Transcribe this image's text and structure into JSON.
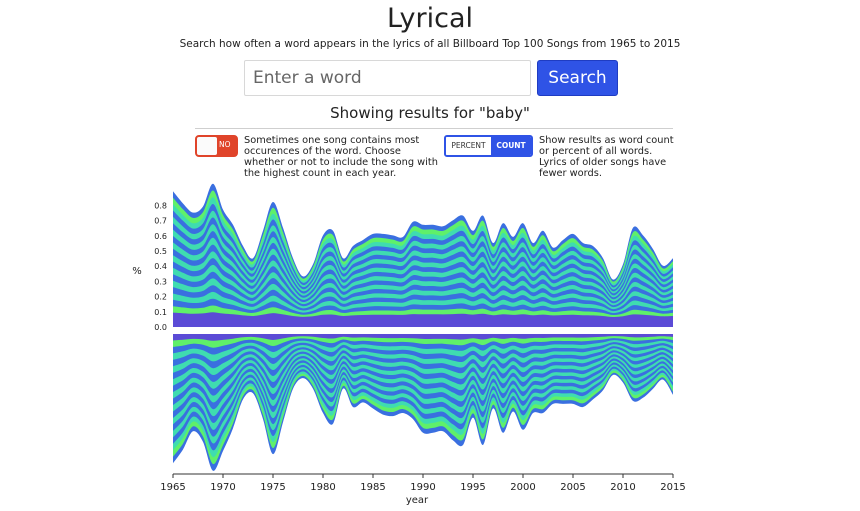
{
  "header": {
    "title": "Lyrical",
    "subtitle": "Search how often a word appears in the lyrics of all Billboard Top 100 Songs from 1965 to 2015"
  },
  "search": {
    "placeholder": "Enter a word",
    "value": "",
    "button_label": "Search"
  },
  "results": {
    "text": "Showing results for \"baby\""
  },
  "options": {
    "toggle_label": "NO",
    "toggle_help": [
      "Sometimes one song contains most",
      "occurences of the word. Choose",
      "whether or not to include the song with",
      "the highest count in each year."
    ],
    "mode_percent_label": "PERCENT",
    "mode_count_label": "COUNT",
    "selected_mode": "COUNT",
    "mode_help": [
      "Show results as word count",
      "or percent of all words.",
      "Lyrics of older songs have",
      "fewer words."
    ]
  },
  "colors": {
    "accent": "#2f53e6",
    "toggle_off": "#e0442a",
    "palette": [
      "#5b4bd6",
      "#3a6fe0",
      "#31a9e6",
      "#32c6c9",
      "#3fdcb0",
      "#5ff06a"
    ]
  },
  "chart_data": {
    "type": "area",
    "subtype": "streamgraph (mirrored around zero baseline)",
    "ylabel": "%",
    "xlabel": "year",
    "x_ticks": [
      1965,
      1970,
      1975,
      1980,
      1985,
      1990,
      1995,
      2000,
      2005,
      2010,
      2015
    ],
    "y_ticks": [
      "0.0",
      "0.1",
      "0.2",
      "0.3",
      "0.4",
      "0.5",
      "0.6",
      "0.7",
      "0.8"
    ],
    "xlim": [
      1965,
      2015
    ],
    "ylim": [
      0,
      0.8
    ],
    "grid": false,
    "legend": "none",
    "series_count": 20,
    "x": [
      1965,
      1966,
      1967,
      1968,
      1969,
      1970,
      1971,
      1972,
      1973,
      1974,
      1975,
      1976,
      1977,
      1978,
      1979,
      1980,
      1981,
      1982,
      1983,
      1984,
      1985,
      1986,
      1987,
      1988,
      1989,
      1990,
      1991,
      1992,
      1993,
      1994,
      1995,
      1996,
      1997,
      1998,
      1999,
      2000,
      2001,
      2002,
      2003,
      2004,
      2005,
      2006,
      2007,
      2008,
      2009,
      2010,
      2011,
      2012,
      2013,
      2014,
      2015
    ],
    "upper_total": [
      0.84,
      0.76,
      0.7,
      0.74,
      0.89,
      0.72,
      0.62,
      0.48,
      0.4,
      0.58,
      0.77,
      0.6,
      0.4,
      0.28,
      0.36,
      0.55,
      0.58,
      0.4,
      0.48,
      0.52,
      0.56,
      0.56,
      0.55,
      0.54,
      0.64,
      0.62,
      0.62,
      0.61,
      0.65,
      0.68,
      0.58,
      0.68,
      0.5,
      0.63,
      0.54,
      0.63,
      0.5,
      0.58,
      0.47,
      0.52,
      0.56,
      0.5,
      0.48,
      0.4,
      0.26,
      0.36,
      0.6,
      0.55,
      0.46,
      0.35,
      0.4
    ],
    "lower_total": [
      0.85,
      0.76,
      0.64,
      0.71,
      0.9,
      0.77,
      0.62,
      0.43,
      0.39,
      0.56,
      0.79,
      0.58,
      0.36,
      0.29,
      0.36,
      0.52,
      0.59,
      0.36,
      0.48,
      0.45,
      0.49,
      0.53,
      0.54,
      0.52,
      0.56,
      0.65,
      0.65,
      0.64,
      0.7,
      0.73,
      0.55,
      0.73,
      0.49,
      0.65,
      0.51,
      0.63,
      0.52,
      0.52,
      0.46,
      0.46,
      0.46,
      0.48,
      0.43,
      0.37,
      0.27,
      0.32,
      0.44,
      0.42,
      0.36,
      0.3,
      0.4
    ]
  }
}
